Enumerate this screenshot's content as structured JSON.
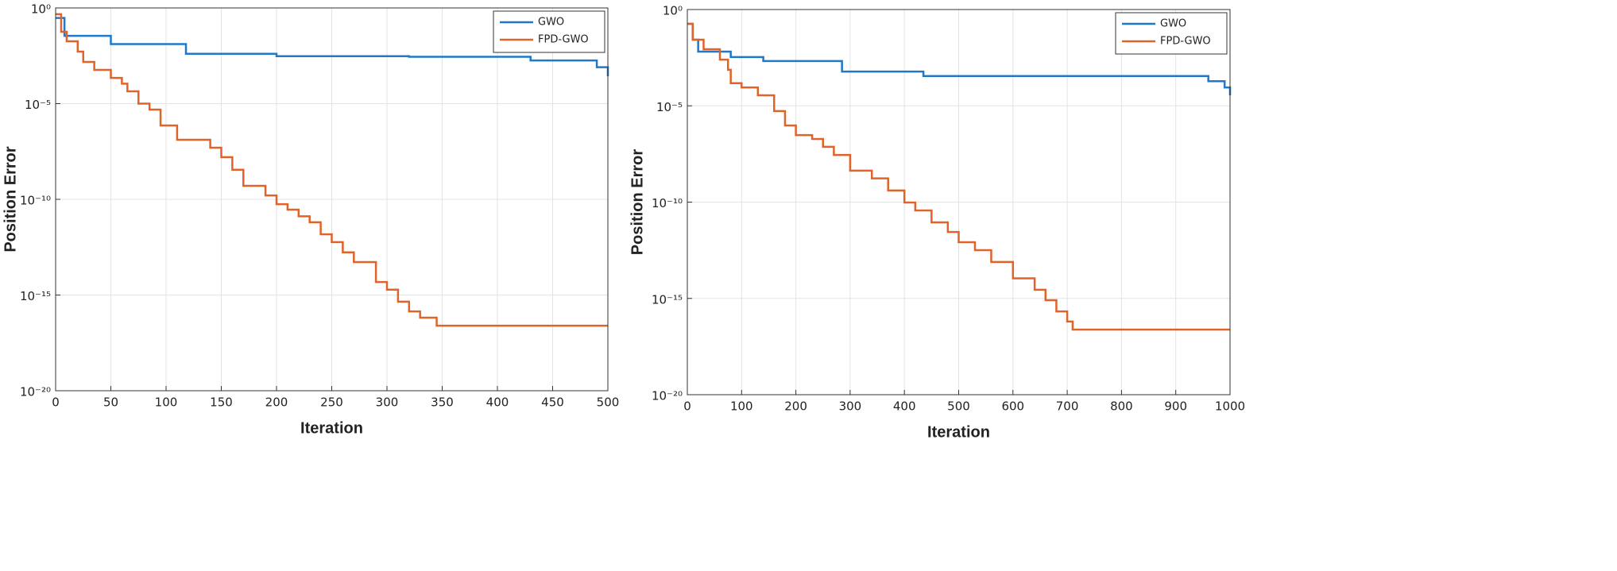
{
  "chart_data": [
    {
      "type": "line",
      "step": "post",
      "xlabel": "Iteration",
      "ylabel": "Position Error",
      "yscale": "log",
      "grid": true,
      "legend": "northeast",
      "xlim": [
        0,
        500
      ],
      "xticks": [
        0,
        50,
        100,
        150,
        200,
        250,
        300,
        350,
        400,
        450,
        500
      ],
      "ylim": [
        1e-20,
        1
      ],
      "yticks": [
        {
          "value": 1e-20,
          "label": "10⁻²⁰"
        },
        {
          "value": 1e-15,
          "label": "10⁻¹⁵"
        },
        {
          "value": 1e-10,
          "label": "10⁻¹⁰"
        },
        {
          "value": 1e-05,
          "label": "10⁻⁵"
        },
        {
          "value": 1,
          "label": "10⁰"
        }
      ],
      "series": [
        {
          "name": "GWO",
          "color": "#1f78c8",
          "x": [
            0,
            8,
            50,
            118,
            200,
            320,
            430,
            490,
            500
          ],
          "values": [
            0.3,
            0.035,
            0.013,
            0.004,
            0.003,
            0.0028,
            0.0018,
            0.0008,
            0.00027
          ]
        },
        {
          "name": "FPD-GWO",
          "color": "#e0632a",
          "x": [
            0,
            5,
            10,
            20,
            25,
            35,
            50,
            60,
            65,
            75,
            85,
            95,
            110,
            140,
            150,
            160,
            170,
            190,
            200,
            210,
            220,
            230,
            240,
            250,
            260,
            270,
            290,
            300,
            310,
            320,
            330,
            345,
            500
          ],
          "values": [
            0.47,
            0.057,
            0.018,
            0.0052,
            0.0015,
            0.00058,
            0.00022,
            0.00011,
            4.4e-05,
            1e-05,
            4.9e-06,
            7.2e-07,
            1.3e-07,
            5e-08,
            1.6e-08,
            3.5e-09,
            5.1e-10,
            1.6e-10,
            5.6e-11,
            2.9e-11,
            1.3e-11,
            6.3e-12,
            1.5e-12,
            5.8e-13,
            1.7e-13,
            5.3e-14,
            4.8e-15,
            1.9e-15,
            4.5e-16,
            1.4e-16,
            6.6e-17,
            2.5e-17,
            2.5e-17
          ]
        }
      ]
    },
    {
      "type": "line",
      "step": "post",
      "xlabel": "Iteration",
      "ylabel": "Position Error",
      "yscale": "log",
      "grid": true,
      "legend": "northeast",
      "xlim": [
        0,
        1000
      ],
      "xticks": [
        0,
        100,
        200,
        300,
        400,
        500,
        600,
        700,
        800,
        900,
        1000
      ],
      "ylim": [
        1e-20,
        1
      ],
      "yticks": [
        {
          "value": 1e-20,
          "label": "10⁻²⁰"
        },
        {
          "value": 1e-15,
          "label": "10⁻¹⁵"
        },
        {
          "value": 1e-10,
          "label": "10⁻¹⁰"
        },
        {
          "value": 1e-05,
          "label": "10⁻⁵"
        },
        {
          "value": 1,
          "label": "10⁰"
        }
      ],
      "series": [
        {
          "name": "GWO",
          "color": "#1f78c8",
          "x": [
            0,
            10,
            20,
            80,
            140,
            285,
            435,
            960,
            990,
            1000
          ],
          "values": [
            0.18,
            0.027,
            0.0065,
            0.0034,
            0.0021,
            0.0006,
            0.00035,
            0.00019,
            9e-05,
            3.5e-05
          ]
        },
        {
          "name": "FPD-GWO",
          "color": "#e0632a",
          "x": [
            0,
            10,
            30,
            60,
            75,
            80,
            100,
            130,
            160,
            180,
            200,
            230,
            250,
            270,
            300,
            340,
            370,
            400,
            420,
            450,
            480,
            500,
            530,
            560,
            600,
            640,
            660,
            680,
            700,
            710,
            1000
          ],
          "values": [
            0.18,
            0.027,
            0.0087,
            0.0025,
            0.00074,
            0.00015,
            9e-05,
            3.5e-05,
            5.3e-06,
            9.5e-07,
            3e-07,
            1.9e-07,
            7.4e-08,
            2.8e-08,
            4.3e-09,
            1.7e-09,
            4e-10,
            9.5e-11,
            3.7e-11,
            8.9e-12,
            2.8e-12,
            8.3e-13,
            3.2e-13,
            7.8e-14,
            1.1e-14,
            2.8e-15,
            8.1e-16,
            2.1e-16,
            6.3e-17,
            2.4e-17,
            2.4e-17
          ]
        }
      ]
    }
  ]
}
